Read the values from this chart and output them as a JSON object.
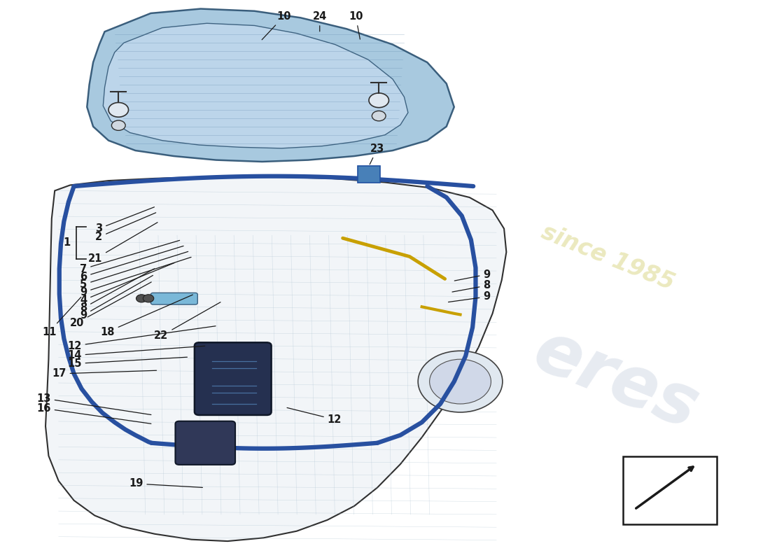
{
  "bg_color": "#ffffff",
  "lid_color": "#9fc4dc",
  "lid_inner_color": "#c0d8ec",
  "lid_edge_color": "#2a5070",
  "body_color": "#f2f5f8",
  "body_edge_color": "#303030",
  "seal_color": "#2850a0",
  "strut_color": "#c8a000",
  "latch_color": "#253050",
  "line_color": "#1a1a1a",
  "watermark_color": "#d0d8e4",
  "watermark_year_color": "#d8d480",
  "label_fontsize": 10.5
}
